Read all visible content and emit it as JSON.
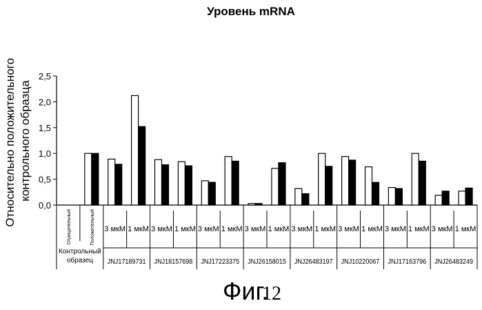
{
  "chart_data": {
    "type": "bar",
    "title": "Уровень mRNA",
    "ylabel": "Относительно положительного контрольного образца",
    "ylim": [
      0,
      2.5
    ],
    "yticks": [
      "0,0",
      "0,5",
      "1,0",
      "1,5",
      "2,0",
      "2,5"
    ],
    "figure_label": "Фиг.",
    "figure_number": "12",
    "control_group": {
      "label": "Контрольный образец",
      "negative_label": "Отрицательный",
      "positive_label": "Положительный",
      "negative_values": [
        0,
        0
      ],
      "positive_values": [
        1.0,
        1.0
      ]
    },
    "dose_labels": [
      "3 мкМ",
      "1 мкМ"
    ],
    "compounds": [
      {
        "name": "JNJ17189731",
        "values": [
          [
            0.89,
            0.79
          ],
          [
            2.12,
            1.52
          ]
        ]
      },
      {
        "name": "JNJ18157698",
        "values": [
          [
            0.88,
            0.78
          ],
          [
            0.84,
            0.76
          ]
        ]
      },
      {
        "name": "JNJ17223375",
        "values": [
          [
            0.47,
            0.44
          ],
          [
            0.94,
            0.85
          ]
        ]
      },
      {
        "name": "JNJ26158015",
        "values": [
          [
            0.03,
            0.03
          ],
          [
            0.71,
            0.82
          ]
        ]
      },
      {
        "name": "JNJ26483197",
        "values": [
          [
            0.32,
            0.22
          ],
          [
            1.0,
            0.75
          ]
        ]
      },
      {
        "name": "JNJ10220067",
        "values": [
          [
            0.94,
            0.87
          ],
          [
            0.74,
            0.44
          ]
        ]
      },
      {
        "name": "JNJ17163796",
        "values": [
          [
            0.34,
            0.32
          ],
          [
            1.0,
            0.85
          ]
        ]
      },
      {
        "name": "JNJ26483249",
        "values": [
          [
            0.19,
            0.27
          ],
          [
            0.27,
            0.33
          ]
        ]
      }
    ],
    "bar_colors": [
      "#ffffff",
      "#000000"
    ]
  }
}
